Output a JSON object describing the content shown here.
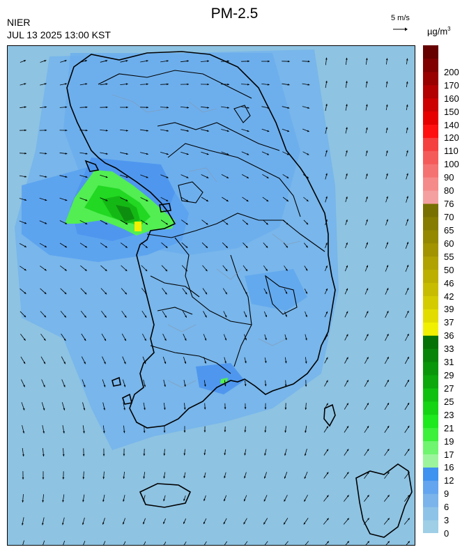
{
  "header": {
    "title": "PM-2.5",
    "organization": "NIER",
    "datetime": "JUL 13 2025 13:00 KST",
    "wind_scale_label": "5 m/s",
    "unit_main": "µg/m",
    "unit_exp": "3"
  },
  "colors": {
    "background_sea": "#8ec3e2",
    "map_low": "#8ec3e2",
    "map_mid": "#6eaeea",
    "map_high": "#4f97ec",
    "green_light": "#5ff55f",
    "green": "#1ed61e",
    "green_dark": "#108c10",
    "yellow": "#e8e800",
    "coast": "#000000",
    "district_border": "#8a93a0"
  },
  "legend": {
    "bins": [
      {
        "label": "0",
        "color": "#9ecfe6"
      },
      {
        "label": "3",
        "color": "#8ec3e8"
      },
      {
        "label": "6",
        "color": "#7ab4ea"
      },
      {
        "label": "9",
        "color": "#63a5ee"
      },
      {
        "label": "12",
        "color": "#3e92f0"
      },
      {
        "label": "16",
        "color": "#9cf59c"
      },
      {
        "label": "17",
        "color": "#6ff56f"
      },
      {
        "label": "19",
        "color": "#3cf03c"
      },
      {
        "label": "21",
        "color": "#1ee81e"
      },
      {
        "label": "23",
        "color": "#14d414"
      },
      {
        "label": "25",
        "color": "#10c010"
      },
      {
        "label": "27",
        "color": "#0ca80c"
      },
      {
        "label": "29",
        "color": "#0a960a"
      },
      {
        "label": "31",
        "color": "#088508"
      },
      {
        "label": "33",
        "color": "#057205"
      },
      {
        "label": "36",
        "color": "#f0f000"
      },
      {
        "label": "37",
        "color": "#e2dc00"
      },
      {
        "label": "39",
        "color": "#d4cc00"
      },
      {
        "label": "42",
        "color": "#c8bc00"
      },
      {
        "label": "46",
        "color": "#bcaf00"
      },
      {
        "label": "50",
        "color": "#b0a200"
      },
      {
        "label": "55",
        "color": "#a29400"
      },
      {
        "label": "60",
        "color": "#948800"
      },
      {
        "label": "65",
        "color": "#867c00"
      },
      {
        "label": "70",
        "color": "#787000"
      },
      {
        "label": "76",
        "color": "#f5a0a0"
      },
      {
        "label": "80",
        "color": "#f58a8a"
      },
      {
        "label": "90",
        "color": "#f57272"
      },
      {
        "label": "100",
        "color": "#f55a5a"
      },
      {
        "label": "110",
        "color": "#f54040"
      },
      {
        "label": "120",
        "color": "#ff1010"
      },
      {
        "label": "140",
        "color": "#e60000"
      },
      {
        "label": "150",
        "color": "#cc0000"
      },
      {
        "label": "160",
        "color": "#b30000"
      },
      {
        "label": "170",
        "color": "#990000"
      },
      {
        "label": "200",
        "color": "#800000"
      },
      {
        "label": "",
        "color": "#660000"
      }
    ]
  }
}
